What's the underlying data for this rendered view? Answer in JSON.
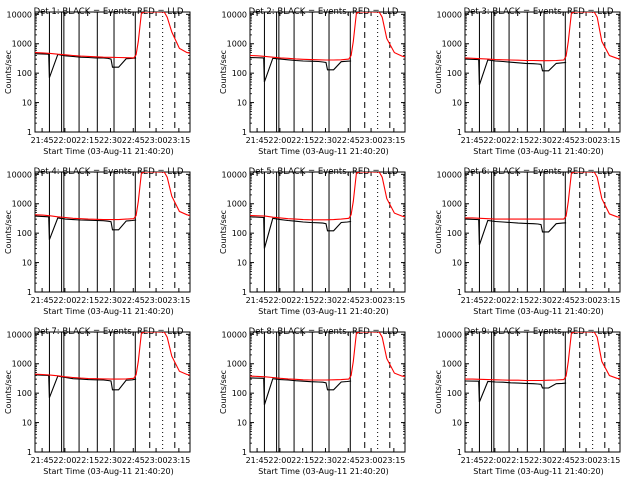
{
  "chart_data": {
    "type": "line",
    "layout": "3x3 grid",
    "start_time_label": "Start Time (03-Aug-11 21:40:20)",
    "ylabel": "Counts/sec",
    "x_ticks": [
      "21:45",
      "22:00",
      "22:15",
      "22:30",
      "22:45",
      "23:00",
      "23:15"
    ],
    "x_tick_minutes": [
      4.67,
      19.67,
      34.67,
      49.67,
      64.67,
      79.67,
      94.67
    ],
    "xlim_minutes": [
      0,
      102
    ],
    "y_scale": "log",
    "y_ticks": [
      "1",
      "10",
      "100",
      "1000",
      "10000"
    ],
    "y_tick_values": [
      1,
      10,
      100,
      1000,
      10000
    ],
    "ylim": [
      1,
      12000
    ],
    "series_colors": {
      "events": "#000000",
      "lld": "#ff0000"
    },
    "vertical_markers": {
      "solid": [
        9.5,
        17.5,
        19.0,
        29.0,
        41.0,
        52.0,
        66.0
      ],
      "dashed": [
        75.5,
        92.0
      ],
      "dotted": [
        84.0
      ]
    },
    "panels": [
      {
        "title": "Det 1: BLACK = Events, RED = LLD",
        "events": {
          "x": [
            0,
            9,
            9.5,
            15,
            20,
            25,
            30,
            35,
            40,
            45,
            48,
            50,
            51,
            55,
            60,
            64,
            66.5
          ],
          "y": [
            460,
            440,
            70,
            430,
            390,
            370,
            350,
            340,
            330,
            330,
            320,
            300,
            160,
            160,
            310,
            320,
            330
          ]
        },
        "lld": {
          "x": [
            0,
            5,
            10,
            15,
            20,
            25,
            30,
            35,
            40,
            45,
            50,
            55,
            60,
            65,
            66.5,
            68,
            70,
            72,
            75,
            78,
            80,
            85,
            87,
            90,
            95,
            100,
            102
          ],
          "y": [
            500,
            490,
            470,
            440,
            420,
            400,
            380,
            370,
            360,
            350,
            345,
            340,
            335,
            330,
            420,
            1200,
            11000,
            12000,
            12000,
            12000,
            12000,
            12000,
            8000,
            2500,
            700,
            500,
            480
          ]
        }
      },
      {
        "title": "Det 2: BLACK = Events, RED = LLD",
        "events": {
          "x": [
            0,
            9,
            9.5,
            15,
            20,
            25,
            30,
            35,
            40,
            45,
            48,
            50,
            51,
            55,
            60,
            64,
            66.5
          ],
          "y": [
            340,
            330,
            50,
            320,
            300,
            285,
            270,
            260,
            255,
            250,
            240,
            230,
            130,
            130,
            245,
            255,
            260
          ]
        },
        "lld": {
          "x": [
            0,
            5,
            10,
            15,
            20,
            25,
            30,
            35,
            40,
            45,
            50,
            55,
            60,
            65,
            66.5,
            68,
            70,
            72,
            75,
            78,
            80,
            85,
            87,
            90,
            95,
            100,
            102
          ],
          "y": [
            400,
            390,
            370,
            350,
            330,
            320,
            305,
            295,
            290,
            285,
            280,
            280,
            285,
            300,
            400,
            1200,
            11000,
            12000,
            12000,
            12000,
            12000,
            12000,
            8000,
            1500,
            500,
            380,
            360
          ]
        }
      },
      {
        "title": "Det 3: BLACK = Events, RED = LLD",
        "events": {
          "x": [
            0,
            9,
            9.5,
            15,
            20,
            25,
            30,
            35,
            40,
            45,
            48,
            50,
            51,
            55,
            60,
            64,
            66.5
          ],
          "y": [
            300,
            290,
            40,
            280,
            260,
            250,
            235,
            225,
            215,
            210,
            205,
            200,
            120,
            120,
            215,
            225,
            230
          ]
        },
        "lld": {
          "x": [
            0,
            5,
            10,
            15,
            20,
            25,
            30,
            35,
            40,
            45,
            50,
            55,
            60,
            65,
            66.5,
            68,
            70,
            72,
            75,
            78,
            80,
            85,
            87,
            90,
            95,
            100,
            102
          ],
          "y": [
            330,
            320,
            310,
            300,
            290,
            285,
            280,
            275,
            270,
            270,
            265,
            265,
            270,
            280,
            380,
            1200,
            11000,
            12000,
            12000,
            12000,
            12000,
            12000,
            8000,
            1200,
            400,
            320,
            300
          ]
        }
      },
      {
        "title": "Det 4: BLACK = Events, RED = LLD",
        "events": {
          "x": [
            0,
            9,
            9.5,
            15,
            20,
            25,
            30,
            35,
            40,
            45,
            48,
            50,
            51,
            55,
            60,
            64,
            66.5
          ],
          "y": [
            380,
            360,
            60,
            330,
            300,
            290,
            280,
            275,
            270,
            265,
            255,
            245,
            130,
            130,
            260,
            270,
            280
          ]
        },
        "lld": {
          "x": [
            0,
            5,
            10,
            15,
            20,
            25,
            30,
            35,
            40,
            45,
            50,
            55,
            60,
            65,
            66.5,
            68,
            70,
            72,
            75,
            78,
            80,
            85,
            87,
            90,
            95,
            100,
            102
          ],
          "y": [
            420,
            410,
            390,
            360,
            340,
            320,
            310,
            300,
            295,
            290,
            290,
            290,
            300,
            310,
            400,
            1200,
            11000,
            12000,
            12000,
            12000,
            12000,
            12000,
            8000,
            1800,
            550,
            420,
            400
          ]
        }
      },
      {
        "title": "Det 5: BLACK = Events, RED = LLD",
        "events": {
          "x": [
            0,
            9,
            9.5,
            15,
            20,
            25,
            30,
            35,
            40,
            45,
            48,
            50,
            51,
            55,
            60,
            64,
            66.5
          ],
          "y": [
            360,
            340,
            30,
            320,
            290,
            270,
            255,
            240,
            230,
            225,
            220,
            210,
            120,
            120,
            230,
            240,
            250
          ]
        },
        "lld": {
          "x": [
            0,
            5,
            10,
            15,
            20,
            25,
            30,
            35,
            40,
            45,
            50,
            55,
            60,
            65,
            66.5,
            68,
            70,
            72,
            75,
            78,
            80,
            85,
            87,
            90,
            95,
            100,
            102
          ],
          "y": [
            400,
            390,
            380,
            350,
            330,
            310,
            300,
            290,
            285,
            285,
            285,
            290,
            300,
            320,
            420,
            1200,
            11000,
            12000,
            12000,
            12000,
            12000,
            12000,
            8000,
            1500,
            480,
            380,
            360
          ]
        }
      },
      {
        "title": "Det 6: BLACK = Events, RED = LLD",
        "events": {
          "x": [
            0,
            9,
            9.5,
            15,
            20,
            25,
            30,
            35,
            40,
            45,
            48,
            50,
            51,
            55,
            60,
            64,
            66.5
          ],
          "y": [
            300,
            290,
            40,
            270,
            250,
            240,
            230,
            220,
            215,
            210,
            205,
            195,
            110,
            110,
            210,
            220,
            225
          ]
        },
        "lld": {
          "x": [
            0,
            5,
            10,
            15,
            20,
            25,
            30,
            35,
            40,
            45,
            50,
            55,
            60,
            65,
            66.5,
            68,
            70,
            72,
            75,
            78,
            80,
            85,
            87,
            90,
            95,
            100,
            102
          ],
          "y": [
            330,
            330,
            320,
            310,
            300,
            300,
            300,
            300,
            300,
            300,
            300,
            300,
            300,
            300,
            380,
            1200,
            11000,
            12000,
            12000,
            12000,
            12000,
            12000,
            8000,
            1500,
            450,
            360,
            350
          ]
        }
      },
      {
        "title": "Det 7: BLACK = Events, RED = LLD",
        "events": {
          "x": [
            0,
            9,
            9.5,
            15,
            20,
            25,
            30,
            35,
            40,
            45,
            48,
            50,
            51,
            55,
            60,
            64,
            66.5
          ],
          "y": [
            420,
            400,
            70,
            380,
            340,
            310,
            300,
            290,
            285,
            280,
            270,
            260,
            130,
            130,
            275,
            285,
            300
          ]
        },
        "lld": {
          "x": [
            0,
            5,
            10,
            15,
            20,
            25,
            30,
            35,
            40,
            45,
            50,
            55,
            60,
            65,
            66.5,
            68,
            70,
            72,
            75,
            78,
            80,
            85,
            87,
            90,
            95,
            100,
            102
          ],
          "y": [
            440,
            430,
            410,
            390,
            360,
            340,
            325,
            315,
            310,
            305,
            300,
            300,
            305,
            320,
            420,
            1200,
            11000,
            12000,
            12000,
            12000,
            12000,
            12000,
            8000,
            1800,
            560,
            430,
            410
          ]
        }
      },
      {
        "title": "Det 8: BLACK = Events, RED = LLD",
        "events": {
          "x": [
            0,
            9,
            9.5,
            15,
            20,
            25,
            30,
            35,
            40,
            45,
            48,
            50,
            51,
            55,
            60,
            64,
            66.5
          ],
          "y": [
            330,
            320,
            40,
            310,
            290,
            280,
            265,
            255,
            245,
            240,
            235,
            225,
            130,
            130,
            240,
            250,
            260
          ]
        },
        "lld": {
          "x": [
            0,
            5,
            10,
            15,
            20,
            25,
            30,
            35,
            40,
            45,
            50,
            55,
            60,
            65,
            66.5,
            68,
            70,
            72,
            75,
            78,
            80,
            85,
            87,
            90,
            95,
            100,
            102
          ],
          "y": [
            380,
            370,
            360,
            340,
            320,
            305,
            295,
            285,
            280,
            280,
            280,
            285,
            290,
            300,
            400,
            1200,
            11000,
            12000,
            12000,
            12000,
            12000,
            12000,
            8000,
            1500,
            480,
            380,
            370
          ]
        }
      },
      {
        "title": "Det 9: BLACK = Events, RED = LLD",
        "events": {
          "x": [
            0,
            9,
            9.5,
            15,
            20,
            25,
            30,
            35,
            40,
            45,
            48,
            50,
            51,
            55,
            60,
            64,
            66.5
          ],
          "y": [
            260,
            255,
            50,
            250,
            240,
            235,
            225,
            220,
            215,
            210,
            205,
            200,
            150,
            150,
            210,
            215,
            220
          ]
        },
        "lld": {
          "x": [
            0,
            5,
            10,
            15,
            20,
            25,
            30,
            35,
            40,
            45,
            50,
            55,
            60,
            65,
            66.5,
            68,
            70,
            72,
            75,
            78,
            80,
            85,
            87,
            90,
            95,
            100,
            102
          ],
          "y": [
            300,
            300,
            295,
            290,
            285,
            280,
            275,
            275,
            270,
            270,
            270,
            275,
            280,
            290,
            380,
            1200,
            11000,
            12000,
            12000,
            12000,
            12000,
            12000,
            8000,
            1200,
            400,
            320,
            310
          ]
        }
      }
    ]
  }
}
